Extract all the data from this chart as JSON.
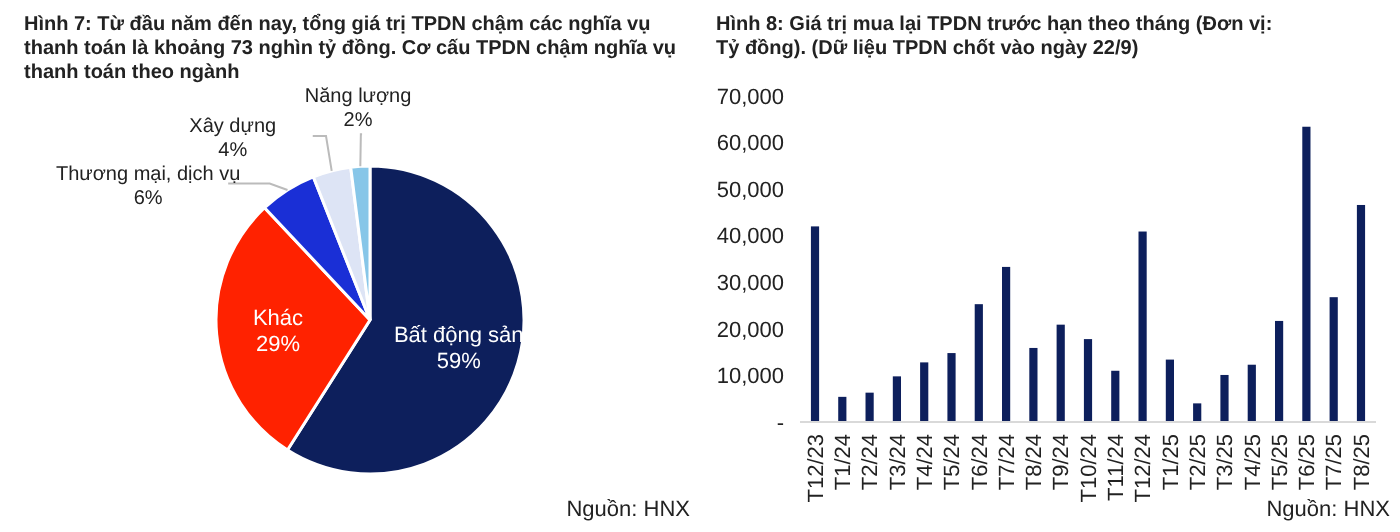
{
  "chart_data": [
    {
      "type": "pie",
      "title": "Hình 7: Từ đầu năm đến nay, tổng giá trị TPDN chậm các nghĩa vụ thanh toán là khoảng 73 nghìn tỷ đồng. Cơ cấu TPDN chậm nghĩa vụ thanh toán theo ngành",
      "categories": [
        "Bất động sản",
        "Khác",
        "Thương mại, dịch vụ",
        "Xây dựng",
        "Năng lượng"
      ],
      "values": [
        59,
        29,
        6,
        4,
        2
      ],
      "colors": [
        "#0d1f5c",
        "#ff2200",
        "#1a2fd6",
        "#dde4f5",
        "#87c6e8"
      ],
      "value_labels": [
        "59%",
        "29%",
        "6%",
        "4%",
        "2%"
      ],
      "annotations": [
        "Nguồn: HNX"
      ]
    },
    {
      "type": "bar",
      "title": "Hình 8: Giá trị mua lại TPDN trước hạn theo tháng (Đơn vị: Tỷ đồng). (Dữ liệu TPDN chốt vào ngày 22/9)",
      "categories": [
        "T12/23",
        "T1/24",
        "T2/24",
        "T3/24",
        "T4/24",
        "T5/24",
        "T6/24",
        "T7/24",
        "T8/24",
        "T9/24",
        "T10/24",
        "T11/24",
        "T12/24",
        "T1/25",
        "T2/25",
        "T3/25",
        "T4/25",
        "T5/25",
        "T6/25",
        "T7/25",
        "T8/25"
      ],
      "values": [
        42000,
        5400,
        6300,
        9800,
        12800,
        14800,
        25300,
        33300,
        15900,
        20900,
        17800,
        11000,
        40900,
        13400,
        4000,
        10100,
        12300,
        21700,
        63400,
        26800,
        46600
      ],
      "color": "#0d1f5c",
      "ylim": [
        0,
        70000
      ],
      "yticks": [
        {
          "value": 0,
          "label": "-"
        },
        {
          "value": 10000,
          "label": "10,000"
        },
        {
          "value": 20000,
          "label": "20,000"
        },
        {
          "value": 30000,
          "label": "30,000"
        },
        {
          "value": 40000,
          "label": "40,000"
        },
        {
          "value": 50000,
          "label": "50,000"
        },
        {
          "value": 60000,
          "label": "60,000"
        },
        {
          "value": 70000,
          "label": "70,000"
        }
      ],
      "grid": false,
      "annotations": [
        "Nguồn: HNX"
      ]
    }
  ]
}
